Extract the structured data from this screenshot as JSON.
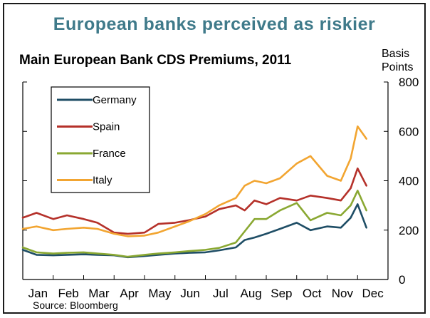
{
  "header": {
    "title": "European banks perceived as riskier"
  },
  "footer": {
    "source": "Source: Bloomberg"
  },
  "colors": {
    "Germany": "#1f4e66",
    "Spain": "#b5312a",
    "France": "#8aa832",
    "Italy": "#f2a531",
    "header": "#3f7a8a"
  },
  "chart_data": {
    "type": "line",
    "title": "Main European Bank CDS Premiums, 2011",
    "ylabel": "Basis Points",
    "xlabel": "",
    "ylim": [
      0,
      800
    ],
    "y_ticks": [
      0,
      200,
      400,
      600,
      800
    ],
    "grid": false,
    "legend_position": "top-left",
    "x_ticks": [
      "Jan",
      "Feb",
      "Mar",
      "Apr",
      "May",
      "Jun",
      "Jul",
      "Aug",
      "Sep",
      "Oct",
      "Nov",
      "Dec"
    ],
    "x": [
      "Jan 1",
      "Jan 15",
      "Feb 1",
      "Feb 15",
      "Mar 1",
      "Mar 15",
      "Apr 1",
      "Apr 15",
      "May 1",
      "May 15",
      "Jun 1",
      "Jun 15",
      "Jul 1",
      "Jul 15",
      "Aug 1",
      "Aug 10",
      "Aug 20",
      "Sep 1",
      "Sep 15",
      "Oct 1",
      "Oct 15",
      "Nov 1",
      "Nov 15",
      "Nov 25",
      "Dec 1",
      "Dec 10"
    ],
    "series": [
      {
        "name": "Germany",
        "values": [
          120,
          100,
          98,
          100,
          102,
          100,
          98,
          90,
          95,
          100,
          105,
          108,
          110,
          118,
          130,
          160,
          170,
          185,
          205,
          230,
          200,
          215,
          210,
          250,
          305,
          210
        ]
      },
      {
        "name": "Spain",
        "values": [
          250,
          270,
          245,
          260,
          245,
          230,
          190,
          185,
          190,
          225,
          230,
          240,
          255,
          285,
          300,
          280,
          320,
          305,
          330,
          320,
          340,
          330,
          320,
          370,
          450,
          380
        ]
      },
      {
        "name": "France",
        "values": [
          130,
          110,
          105,
          108,
          110,
          105,
          100,
          92,
          100,
          105,
          110,
          115,
          120,
          128,
          150,
          195,
          245,
          245,
          280,
          310,
          240,
          270,
          260,
          300,
          360,
          280
        ]
      },
      {
        "name": "Italy",
        "values": [
          205,
          215,
          200,
          205,
          210,
          205,
          185,
          175,
          178,
          190,
          215,
          235,
          265,
          300,
          330,
          380,
          400,
          390,
          410,
          470,
          500,
          420,
          400,
          490,
          620,
          570
        ]
      }
    ]
  }
}
